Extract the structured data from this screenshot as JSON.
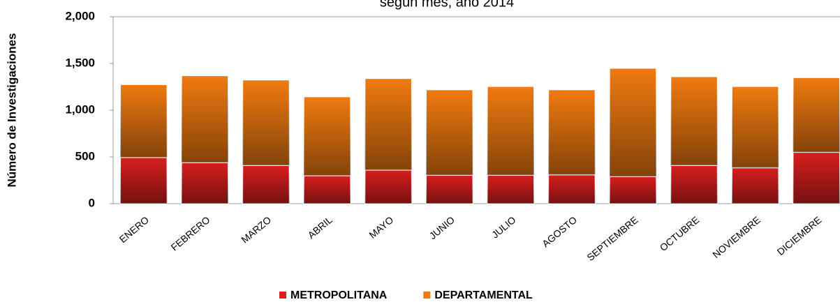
{
  "chart_data": {
    "type": "stacked_bar",
    "title": "según mes, año 2014",
    "y_label": "Número de Investigaciones",
    "categories": [
      "ENERO",
      "FEBRERO",
      "MARZO",
      "ABRIL",
      "MAYO",
      "JUNIO",
      "JULIO",
      "AGOSTO",
      "SEPTIEMBRE",
      "OCTUBRE",
      "NOVIEMBRE",
      "DICIEMBRE"
    ],
    "series": [
      {
        "name": "METROPOLITANA",
        "color": "#d81e1e",
        "values": [
          495,
          440,
          410,
          300,
          360,
          305,
          305,
          310,
          290,
          410,
          385,
          550
        ]
      },
      {
        "name": "DEPARTAMENTAL",
        "color": "#f07a10",
        "values": [
          780,
          930,
          915,
          845,
          980,
          915,
          950,
          910,
          1160,
          950,
          870,
          800
        ]
      }
    ],
    "ylim": [
      0,
      2000
    ],
    "yticks": [
      0,
      500,
      {
        "value": 1000,
        "label": "1,000"
      },
      {
        "value": 1500,
        "label": "1,500"
      },
      {
        "value": 2000,
        "label": "2,000"
      }
    ],
    "legend": "bottom"
  }
}
